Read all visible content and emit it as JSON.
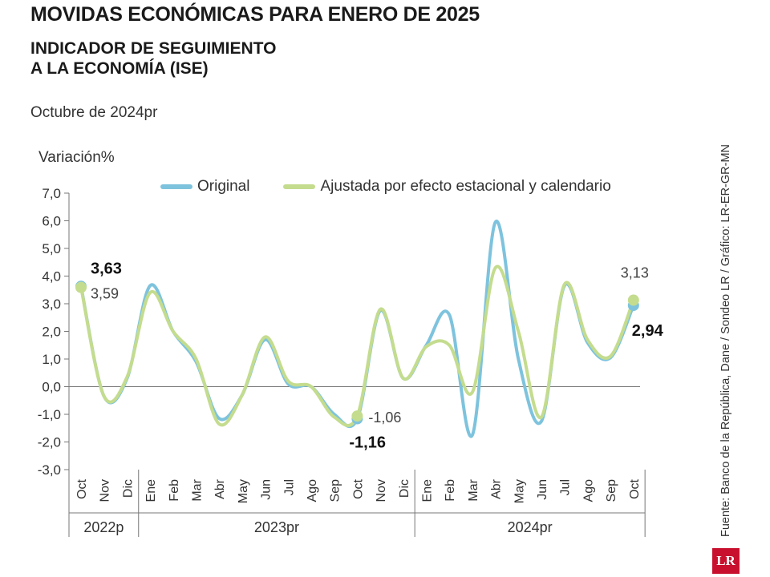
{
  "header": {
    "title": "MOVIDAS ECONÓMICAS PARA ENERO DE 2025",
    "subtitle_line1": "INDICADOR DE SEGUIMIENTO",
    "subtitle_line2": "A LA ECONOMÍA (ISE)",
    "period": "Octubre de 2024pr"
  },
  "source": "Fuente: Banco de la República, Dane / Sondeo LR / Gráfico: LR-ER-GR-MN",
  "logo": "LR",
  "chart_data": {
    "type": "line",
    "ylabel": "Variación%",
    "ylim": [
      -3,
      7
    ],
    "yticks": [
      "7,0",
      "6,0",
      "5,0",
      "4,0",
      "3,0",
      "2,0",
      "1,0",
      "0,0",
      "-1,0",
      "-2,0",
      "-3,0"
    ],
    "ytick_values": [
      7,
      6,
      5,
      4,
      3,
      2,
      1,
      0,
      -1,
      -2,
      -3
    ],
    "categories": [
      "Oct",
      "Nov",
      "Dic",
      "Ene",
      "Feb",
      "Mar",
      "Abr",
      "May",
      "Jun",
      "Jul",
      "Ago",
      "Sep",
      "Oct",
      "Nov",
      "Dic",
      "Ene",
      "Feb",
      "Mar",
      "Abr",
      "May",
      "Jun",
      "Jul",
      "Ago",
      "Sep",
      "Oct"
    ],
    "year_groups": [
      {
        "label": "2022p",
        "start": 0,
        "end": 2
      },
      {
        "label": "2023pr",
        "start": 3,
        "end": 14
      },
      {
        "label": "2024pr",
        "start": 15,
        "end": 24
      }
    ],
    "colors": {
      "original": "#7ec3dd",
      "adjusted": "#c4dc8e"
    },
    "series": [
      {
        "name": "Original",
        "values": [
          3.63,
          -0.35,
          0.3,
          3.65,
          2.0,
          0.9,
          -1.15,
          -0.3,
          1.7,
          0.1,
          0.0,
          -1.0,
          -1.16,
          2.75,
          0.3,
          1.5,
          2.6,
          -1.75,
          5.95,
          1.0,
          -1.25,
          3.65,
          1.6,
          1.05,
          2.94
        ]
      },
      {
        "name": "Ajustada por efecto estacional y calendario",
        "values": [
          3.59,
          -0.35,
          0.35,
          3.4,
          2.0,
          1.0,
          -1.35,
          -0.3,
          1.8,
          0.2,
          0.0,
          -1.1,
          -1.06,
          2.8,
          0.3,
          1.45,
          1.5,
          -0.2,
          4.3,
          2.0,
          -1.1,
          3.7,
          1.7,
          1.1,
          3.13
        ]
      }
    ],
    "annotations": [
      {
        "text": "3,63",
        "index": 0,
        "value": 3.63,
        "bold": true
      },
      {
        "text": "3,59",
        "index": 0,
        "value": 3.59,
        "bold": false
      },
      {
        "text": "-1,06",
        "index": 12,
        "value": -1.06,
        "bold": false
      },
      {
        "text": "-1,16",
        "index": 12,
        "value": -1.16,
        "bold": true
      },
      {
        "text": "3,13",
        "index": 24,
        "value": 3.13,
        "bold": false
      },
      {
        "text": "2,94",
        "index": 24,
        "value": 2.94,
        "bold": true
      }
    ]
  }
}
